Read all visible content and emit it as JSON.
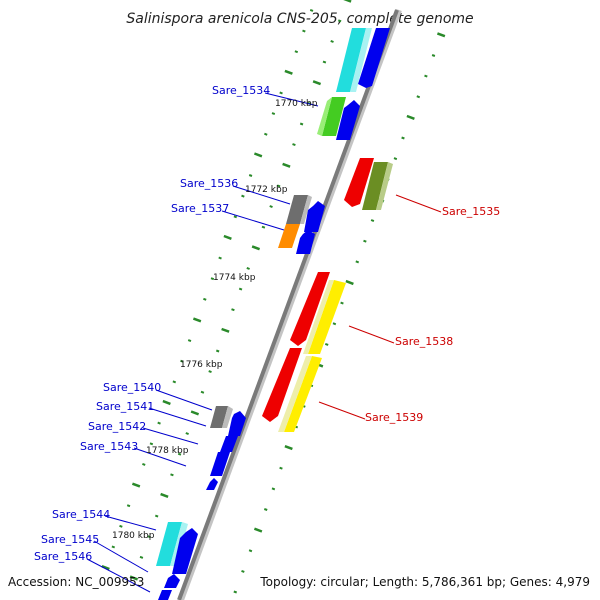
{
  "title": "Salinispora arenicola CNS-205, complete genome",
  "footer": {
    "accession": "Accession: NC_009953",
    "summary": "Topology: circular; Length: 5,786,361 bp; Genes: 4,979"
  },
  "colors": {
    "forward_label": "#0000cc",
    "reverse_label": "#cc0000",
    "backbone": "#8a8a8a",
    "tick": "#2a8a2a",
    "blue": "#0000ee",
    "cyan": "#22dddd",
    "green": "#44cc22",
    "olive": "#6b8e23",
    "gray": "#6e6e6e",
    "orange": "#ff8c00",
    "red": "#ee0000",
    "yellow": "#ffee00",
    "pale_yellow": "#eeeeaa"
  },
  "kbp_labels": [
    {
      "text": "1770 kbp"
    },
    {
      "text": "1772 kbp"
    },
    {
      "text": "1774 kbp"
    },
    {
      "text": "1776 kbp"
    },
    {
      "text": "1778 kbp"
    },
    {
      "text": "1780 kbp"
    }
  ],
  "forward_genes": [
    {
      "name": "Sare_1534"
    },
    {
      "name": "Sare_1536"
    },
    {
      "name": "Sare_1537"
    },
    {
      "name": "Sare_1540"
    },
    {
      "name": "Sare_1541"
    },
    {
      "name": "Sare_1542"
    },
    {
      "name": "Sare_1543"
    },
    {
      "name": "Sare_1544"
    },
    {
      "name": "Sare_1545"
    },
    {
      "name": "Sare_1546"
    }
  ],
  "reverse_genes": [
    {
      "name": "Sare_1535"
    },
    {
      "name": "Sare_1538"
    },
    {
      "name": "Sare_1539"
    }
  ]
}
